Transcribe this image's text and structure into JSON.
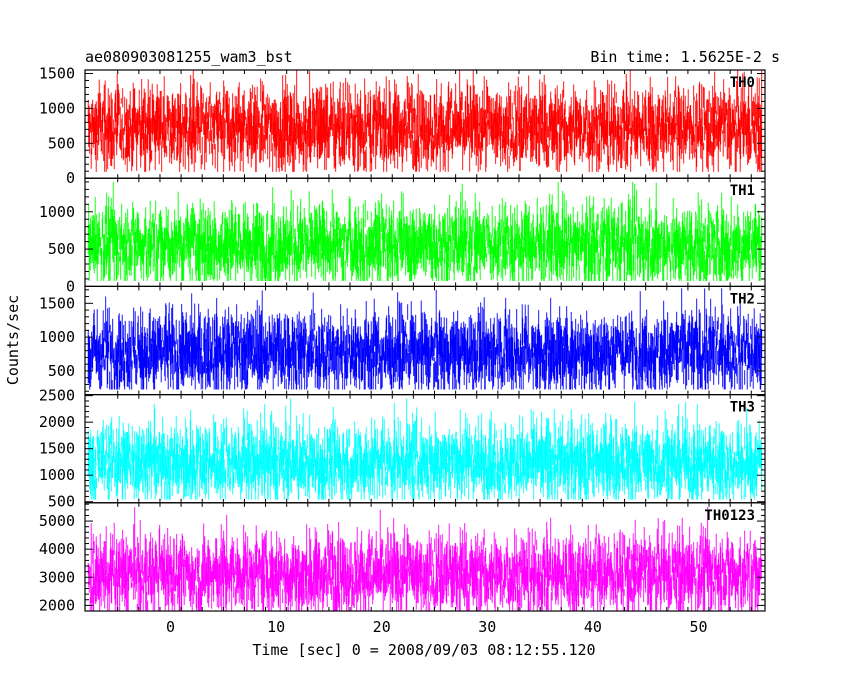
{
  "chart_data": {
    "type": "line",
    "title_left": "ae080903081255_wam3_bst",
    "title_right": "Bin time: 1.5625E-2 s",
    "ylabel": "Counts/sec",
    "xlabel": "Time [sec] 0 = 2008/09/03 08:12:55.120",
    "xlim": [
      -8.1,
      56.3
    ],
    "data_xrange": [
      -7.8,
      56.0
    ],
    "x_ticks": [
      0,
      10,
      20,
      30,
      40,
      50
    ],
    "panels": [
      {
        "name": "TH0",
        "color": "#ff0000",
        "ylim": [
          0,
          1550
        ],
        "y_ticks": [
          0,
          500,
          1000,
          1500
        ],
        "mean": 720,
        "low": 100,
        "high": 1550
      },
      {
        "name": "TH1",
        "color": "#00ff00",
        "ylim": [
          0,
          1450
        ],
        "y_ticks": [
          0,
          500,
          1000
        ],
        "mean": 560,
        "low": 80,
        "high": 1400
      },
      {
        "name": "TH2",
        "color": "#0000ff",
        "ylim": [
          150,
          1750
        ],
        "y_ticks": [
          500,
          1000,
          1500
        ],
        "mean": 780,
        "low": 250,
        "high": 1720
      },
      {
        "name": "TH3",
        "color": "#00ffff",
        "ylim": [
          480,
          2520
        ],
        "y_ticks": [
          500,
          1000,
          1500,
          2000,
          2500
        ],
        "mean": 1250,
        "low": 600,
        "high": 2450
      },
      {
        "name": "TH0123",
        "color": "#ff00ff",
        "ylim": [
          1800,
          5650
        ],
        "y_ticks": [
          2000,
          3000,
          4000,
          5000
        ],
        "mean": 3100,
        "low": 2000,
        "high": 5500
      }
    ]
  }
}
